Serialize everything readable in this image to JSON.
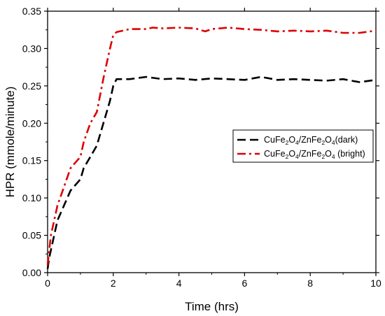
{
  "chart_data": {
    "type": "line",
    "title": "",
    "xlabel": "Time (hrs)",
    "ylabel": "HPR (mmole/minute)",
    "xlim": [
      0,
      10
    ],
    "ylim": [
      0.0,
      0.35
    ],
    "x_ticks": [
      0,
      2,
      4,
      6,
      8,
      10
    ],
    "y_ticks": [
      0.0,
      0.05,
      0.1,
      0.15,
      0.2,
      0.25,
      0.3,
      0.35
    ],
    "x_tick_labels": [
      "0",
      "2",
      "4",
      "6",
      "8",
      "10"
    ],
    "y_tick_labels": [
      "0.00",
      "0.05",
      "0.10",
      "0.15",
      "0.20",
      "0.25",
      "0.30",
      "0.35"
    ],
    "grid": false,
    "legend_position": "center-right",
    "series": [
      {
        "name_parts": [
          [
            "CuFe",
            false
          ],
          [
            "2",
            true
          ],
          [
            "O",
            false
          ],
          [
            "4",
            true
          ],
          [
            "/ZnFe",
            false
          ],
          [
            "2",
            true
          ],
          [
            "O",
            false
          ],
          [
            "4",
            true
          ],
          [
            "(dark)",
            false
          ]
        ],
        "color": "#000000",
        "dash": "dashed",
        "x": [
          0.0,
          0.05,
          0.1,
          0.2,
          0.3,
          0.5,
          0.7,
          1.0,
          1.1,
          1.3,
          1.5,
          1.7,
          1.9,
          2.0,
          2.1,
          2.5,
          3.0,
          3.5,
          4.0,
          4.5,
          5.0,
          5.5,
          6.0,
          6.5,
          7.0,
          7.5,
          8.0,
          8.5,
          9.0,
          9.5,
          10.0
        ],
        "y": [
          0.005,
          0.02,
          0.03,
          0.05,
          0.07,
          0.09,
          0.11,
          0.125,
          0.14,
          0.155,
          0.17,
          0.2,
          0.23,
          0.25,
          0.259,
          0.259,
          0.262,
          0.259,
          0.26,
          0.258,
          0.26,
          0.259,
          0.258,
          0.262,
          0.258,
          0.259,
          0.258,
          0.257,
          0.259,
          0.255,
          0.258
        ]
      },
      {
        "name_parts": [
          [
            "CuFe",
            false
          ],
          [
            "2",
            true
          ],
          [
            "O",
            false
          ],
          [
            "4",
            true
          ],
          [
            "/ZnFe",
            false
          ],
          [
            "2",
            true
          ],
          [
            "O",
            false
          ],
          [
            "4",
            true
          ],
          [
            " (bright)",
            false
          ]
        ],
        "color": "#dd0000",
        "dash": "dash-dot",
        "x": [
          0.0,
          0.05,
          0.1,
          0.2,
          0.3,
          0.5,
          0.7,
          0.9,
          1.0,
          1.1,
          1.3,
          1.5,
          1.7,
          1.9,
          2.0,
          2.1,
          2.5,
          3.0,
          3.2,
          3.5,
          4.0,
          4.5,
          4.8,
          5.0,
          5.5,
          6.0,
          6.5,
          7.0,
          7.5,
          8.0,
          8.5,
          9.0,
          9.5,
          10.0
        ],
        "y": [
          0.01,
          0.03,
          0.05,
          0.07,
          0.09,
          0.115,
          0.14,
          0.15,
          0.155,
          0.175,
          0.2,
          0.215,
          0.26,
          0.3,
          0.318,
          0.322,
          0.326,
          0.326,
          0.328,
          0.327,
          0.328,
          0.327,
          0.323,
          0.326,
          0.328,
          0.326,
          0.325,
          0.323,
          0.324,
          0.323,
          0.324,
          0.321,
          0.321,
          0.324
        ]
      }
    ]
  }
}
